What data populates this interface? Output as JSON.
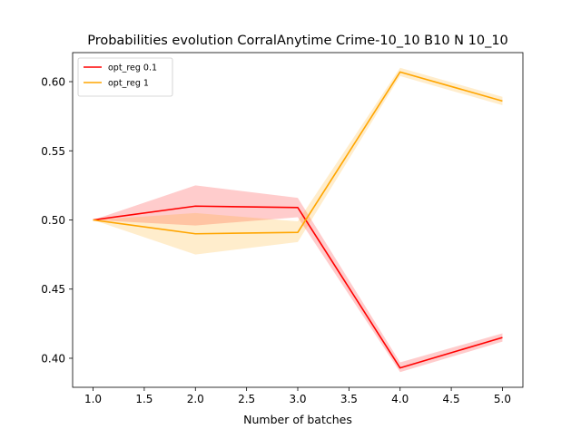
{
  "chart_data": {
    "type": "line",
    "title": "Probabilities evolution CorralAnytime Crime-10_10 B10 N 10_10",
    "xlabel": "Number of batches",
    "ylabel": "",
    "xlim": [
      0.8,
      5.2
    ],
    "ylim": [
      0.379,
      0.621
    ],
    "xticks": [
      1.0,
      1.5,
      2.0,
      2.5,
      3.0,
      3.5,
      4.0,
      4.5,
      5.0
    ],
    "xtick_labels": [
      "1.0",
      "1.5",
      "2.0",
      "2.5",
      "3.0",
      "3.5",
      "4.0",
      "4.5",
      "5.0"
    ],
    "yticks": [
      0.4,
      0.45,
      0.5,
      0.55,
      0.6
    ],
    "ytick_labels": [
      "0.40",
      "0.45",
      "0.50",
      "0.55",
      "0.60"
    ],
    "grid": false,
    "legend_position": "upper left",
    "series": [
      {
        "name": "opt_reg 0.1",
        "color": "#ff0000",
        "x": [
          1,
          2,
          3,
          4,
          5
        ],
        "y": [
          0.5,
          0.51,
          0.509,
          0.393,
          0.415
        ],
        "band_lower": [
          0.5,
          0.496,
          0.502,
          0.39,
          0.412
        ],
        "band_upper": [
          0.5,
          0.525,
          0.516,
          0.397,
          0.418
        ]
      },
      {
        "name": "opt_reg 1",
        "color": "#ffa500",
        "x": [
          1,
          2,
          3,
          4,
          5
        ],
        "y": [
          0.5,
          0.49,
          0.491,
          0.607,
          0.586
        ],
        "band_lower": [
          0.5,
          0.475,
          0.484,
          0.604,
          0.583
        ],
        "band_upper": [
          0.5,
          0.505,
          0.499,
          0.61,
          0.589
        ]
      }
    ]
  }
}
